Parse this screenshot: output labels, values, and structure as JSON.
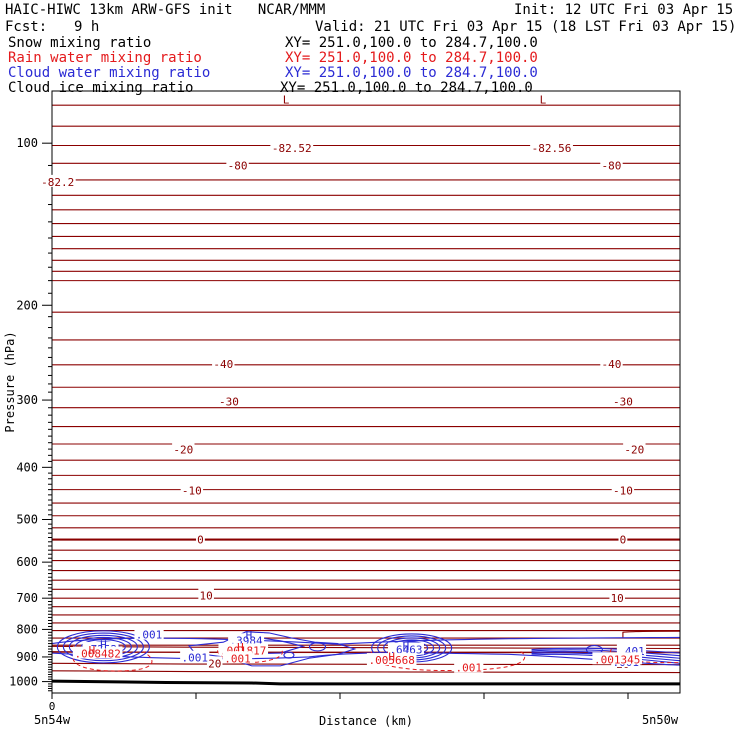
{
  "header": {
    "title_left": "HAIC-HIWC 13km ARW-GFS init   NCAR/MMM",
    "init": "Init: 12 UTC Fri 03 Apr 15",
    "fcst_label": "Fcst:",
    "fcst_value": "9 h",
    "valid": "Valid: 21 UTC Fri 03 Apr 15 (18 LST Fri 03 Apr 15)"
  },
  "legend": [
    {
      "name": "Snow mixing ratio",
      "xy": "XY= 251.0,100.0 to 284.7,100.0",
      "color": "#000000"
    },
    {
      "name": "Rain water mixing ratio",
      "xy": "XY= 251.0,100.0 to 284.7,100.0",
      "color": "#e41a1c"
    },
    {
      "name": "Cloud water mixing ratio",
      "xy": "XY= 251.0,100.0 to 284.7,100.0",
      "color": "#2b2bd4"
    },
    {
      "name": "Cloud ice mixing ratio",
      "xy": "XY= 251.0,100.0 to 284.7,100.0",
      "color": "#000000"
    }
  ],
  "chart_data": {
    "type": "line",
    "ylabel": "Pressure (hPa)",
    "xlabel": "Distance (km)",
    "yticks": [
      100,
      200,
      300,
      400,
      500,
      600,
      700,
      800,
      900,
      1000
    ],
    "ylim": [
      1050,
      80
    ],
    "xlim": [
      0,
      220
    ],
    "x_tick_label": "0",
    "x_endpoint_labels": {
      "left": "5n54w",
      "right": "5n50w"
    },
    "colors": {
      "temperature": "#8b0000",
      "rain": "#e41a1c",
      "cloud": "#2b2bd4",
      "terrain": "#000000"
    },
    "temperature_contour_labels": [
      {
        "text": "-82.2",
        "x": 2,
        "p": 118
      },
      {
        "text": "-80",
        "x": 65,
        "p": 110
      },
      {
        "text": "-82.52",
        "x": 84,
        "p": 102
      },
      {
        "text": "-82.56",
        "x": 175,
        "p": 102
      },
      {
        "text": "-80",
        "x": 196,
        "p": 110
      },
      {
        "text": "-40",
        "x": 60,
        "p": 257
      },
      {
        "text": "-40",
        "x": 196,
        "p": 257
      },
      {
        "text": "-30",
        "x": 62,
        "p": 302
      },
      {
        "text": "-30",
        "x": 200,
        "p": 302
      },
      {
        "text": "-20",
        "x": 46,
        "p": 371
      },
      {
        "text": "-20",
        "x": 204,
        "p": 371
      },
      {
        "text": "-10",
        "x": 49,
        "p": 442
      },
      {
        "text": "-10",
        "x": 200,
        "p": 442
      },
      {
        "text": "0",
        "x": 52,
        "p": 545
      },
      {
        "text": "0",
        "x": 200,
        "p": 545
      },
      {
        "text": "10",
        "x": 54,
        "p": 692
      },
      {
        "text": "10",
        "x": 198,
        "p": 700
      },
      {
        "text": "20",
        "x": 57,
        "p": 925
      },
      {
        "text": "20",
        "x": 200,
        "p": 928
      }
    ],
    "extrema_labels": [
      {
        "kind": "L",
        "x": 82,
        "p": 83,
        "color": "#8b0000"
      },
      {
        "kind": "L",
        "x": 172,
        "p": 83,
        "color": "#8b0000"
      },
      {
        "kind": "H",
        "x": 18,
        "p": 853,
        "color": "#2b2bd4"
      },
      {
        "kind": "H",
        "x": 69,
        "p": 820,
        "color": "#2b2bd4"
      },
      {
        "kind": "H",
        "x": 124,
        "p": 858,
        "color": "#2b2bd4"
      },
      {
        "kind": "H",
        "x": 14,
        "p": 873,
        "color": "#e41a1c"
      },
      {
        "kind": "H",
        "x": 66,
        "p": 862,
        "color": "#e41a1c"
      },
      {
        "kind": "H",
        "x": 119,
        "p": 898,
        "color": "#e41a1c"
      }
    ],
    "cloud_water_labels": [
      {
        "text": ".001",
        "x": 34,
        "p": 818
      },
      {
        "text": ".7252",
        "x": 17,
        "p": 870
      },
      {
        "text": ".3984",
        "x": 68,
        "p": 838
      },
      {
        "text": ".001",
        "x": 50,
        "p": 903
      },
      {
        "text": ".6463",
        "x": 124,
        "p": 872
      },
      {
        "text": ".401",
        "x": 203,
        "p": 877
      },
      {
        "text": ".001",
        "x": 201,
        "p": 920
      }
    ],
    "rain_water_labels": [
      {
        "text": ".008482",
        "x": 16,
        "p": 887
      },
      {
        "text": ".001817",
        "x": 67,
        "p": 875
      },
      {
        "text": ".001",
        "x": 65,
        "p": 905
      },
      {
        "text": ".005668",
        "x": 119,
        "p": 912
      },
      {
        "text": ".001",
        "x": 146,
        "p": 942
      },
      {
        "text": ".001345",
        "x": 198,
        "p": 909
      }
    ],
    "grid": false
  }
}
